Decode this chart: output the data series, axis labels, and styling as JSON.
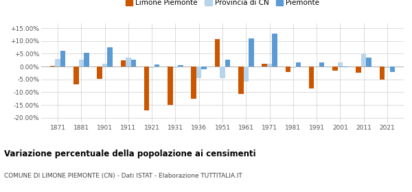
{
  "years": [
    1871,
    1881,
    1901,
    1911,
    1921,
    1931,
    1936,
    1951,
    1961,
    1971,
    1981,
    1991,
    2001,
    2011,
    2021
  ],
  "limone": [
    0.3,
    -7.0,
    -4.8,
    2.5,
    -17.0,
    -15.0,
    -12.5,
    10.8,
    -10.8,
    1.0,
    -2.0,
    -8.5,
    -1.5,
    -2.5,
    -5.0
  ],
  "provincia_cn": [
    3.0,
    2.8,
    1.0,
    3.5,
    -0.5,
    -0.5,
    -4.5,
    -4.5,
    -5.8,
    1.0,
    -0.5,
    0.0,
    1.5,
    5.0,
    -0.5
  ],
  "piemonte": [
    6.2,
    5.3,
    7.5,
    2.8,
    0.8,
    0.5,
    -1.0,
    2.8,
    11.0,
    13.0,
    1.5,
    1.5,
    -0.3,
    3.5,
    -2.0
  ],
  "color_limone": "#cc5500",
  "color_provincia": "#b8d4ea",
  "color_piemonte": "#5b9bd5",
  "title": "Variazione percentuale della popolazione ai censimenti",
  "subtitle": "COMUNE DI LIMONE PIEMONTE (CN) - Dati ISTAT - Elaborazione TUTTITALIA.IT",
  "ylim": [
    -22,
    17
  ],
  "yticks": [
    -20,
    -15,
    -10,
    -5,
    0,
    5,
    10,
    15
  ],
  "ytick_labels": [
    "-20.00%",
    "-15.00%",
    "-10.00%",
    "-5.00%",
    "0.00%",
    "+5.00%",
    "+10.00%",
    "+15.00%"
  ],
  "legend_labels": [
    "Limone Piemonte",
    "Provincia di CN",
    "Piemonte"
  ],
  "bar_width": 0.22
}
